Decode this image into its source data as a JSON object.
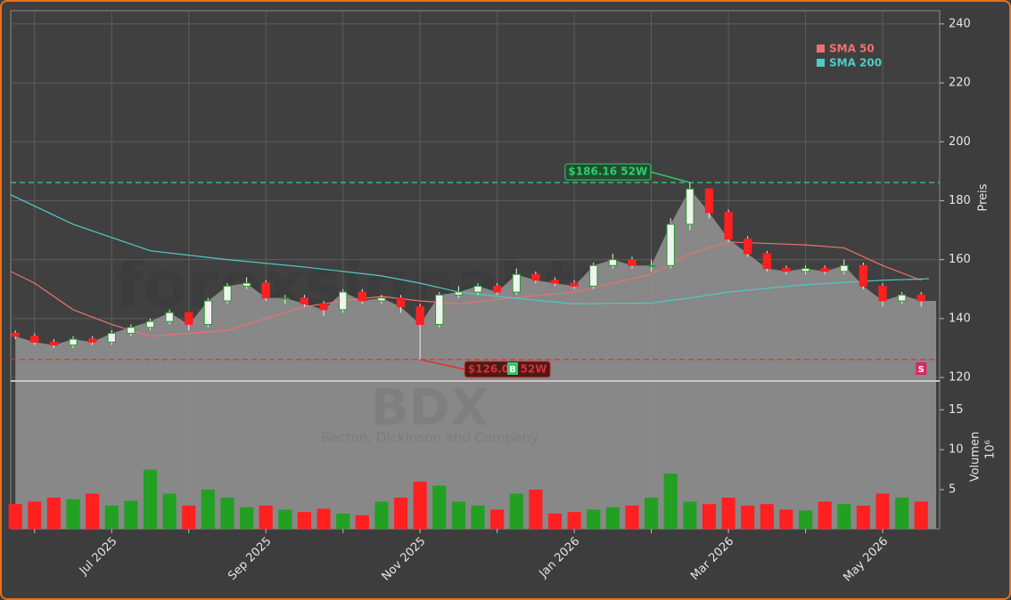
{
  "chart_data": {
    "type": "candlestick",
    "watermark": "forexsignal.trade",
    "symbol": "BDX",
    "company": "Becton, Dickinson and Company",
    "y_label": "Preis",
    "volume_label": "Volumen",
    "volume_unit": "10⁶",
    "grid": true,
    "legend": "upper right",
    "up_color": "#22a022",
    "down_color": "#ff2020",
    "area_color": "#8e8e8e",
    "xlim": [
      5.69,
      17.74
    ],
    "xticks": [
      {
        "value": 6,
        "label": null
      },
      {
        "value": 7,
        "label": "Jul 2025"
      },
      {
        "value": 8,
        "label": null
      },
      {
        "value": 9,
        "label": "Sep 2025"
      },
      {
        "value": 10,
        "label": null
      },
      {
        "value": 11,
        "label": "Nov 2025"
      },
      {
        "value": 12,
        "label": null
      },
      {
        "value": 13,
        "label": "Jan 2026"
      },
      {
        "value": 14,
        "label": null
      },
      {
        "value": 15,
        "label": "Mar 2026"
      },
      {
        "value": 16,
        "label": null
      },
      {
        "value": 17,
        "label": "May 2026"
      }
    ],
    "ylim": [
      118.8,
      244.5
    ],
    "yticks": [
      120,
      140,
      160,
      180,
      200,
      220,
      240
    ],
    "y2lim": [
      0.1,
      18.6
    ],
    "y2ticks": [
      5,
      10,
      15
    ],
    "x": [
      5.75,
      6.0,
      6.25,
      6.5,
      6.75,
      7.0,
      7.25,
      7.5,
      7.75,
      8.0,
      8.25,
      8.5,
      8.75,
      9.0,
      9.25,
      9.5,
      9.75,
      10.0,
      10.25,
      10.5,
      10.75,
      11.0,
      11.25,
      11.5,
      11.75,
      12.0,
      12.25,
      12.5,
      12.75,
      13.0,
      13.25,
      13.5,
      13.75,
      14.0,
      14.25,
      14.5,
      14.75,
      15.0,
      15.25,
      15.5,
      15.75,
      16.0,
      16.25,
      16.5,
      16.75,
      17.0,
      17.25,
      17.5
    ],
    "open": [
      135,
      134,
      132,
      131,
      133,
      132,
      135,
      137,
      139,
      142,
      138,
      146,
      151,
      152,
      147,
      147,
      145,
      143,
      149,
      146,
      147,
      144,
      138,
      148,
      149,
      151,
      149,
      155,
      153,
      152,
      151,
      158,
      160,
      158,
      158,
      172,
      184,
      176,
      167,
      162,
      157,
      156,
      157,
      156,
      158,
      151,
      146,
      148
    ],
    "high": [
      136,
      135,
      133,
      134,
      134,
      136,
      138,
      140,
      143,
      142,
      147,
      152,
      154,
      153,
      148,
      148,
      146,
      150,
      150,
      148,
      148,
      145,
      149,
      151,
      152,
      152,
      157,
      156,
      154,
      153,
      159,
      162,
      161,
      160,
      174,
      186.16,
      184,
      177,
      168,
      163,
      158,
      158,
      158,
      160,
      159,
      152,
      149,
      149
    ],
    "low": [
      133,
      131,
      130,
      130,
      131,
      131,
      134,
      136,
      138,
      136,
      137,
      145,
      150,
      146,
      145,
      144,
      141,
      142,
      145,
      145,
      142,
      126.09,
      137,
      147,
      148,
      148,
      148,
      152,
      151,
      150,
      150,
      157,
      157,
      156,
      157,
      170,
      174,
      166,
      161,
      156,
      155,
      155,
      155,
      155,
      150,
      144,
      145,
      144
    ],
    "close": [
      134,
      132,
      131,
      133,
      132,
      135,
      137,
      139,
      142,
      138,
      146,
      151,
      152,
      147,
      147,
      145,
      143,
      149,
      146,
      147,
      144,
      138,
      148,
      149,
      151,
      149,
      155,
      153,
      152,
      151,
      158,
      160,
      158,
      158,
      172,
      184,
      176,
      167,
      162,
      157,
      156,
      157,
      156,
      158,
      151,
      146,
      148,
      146
    ],
    "volume": [
      3.2,
      3.5,
      4.0,
      3.8,
      4.5,
      3.0,
      3.6,
      7.5,
      4.5,
      3.0,
      5.0,
      4.0,
      2.8,
      3.0,
      2.5,
      2.2,
      2.6,
      2.0,
      1.8,
      3.5,
      4.0,
      6.0,
      5.5,
      3.5,
      3.0,
      2.5,
      4.5,
      5.0,
      2.0,
      2.2,
      2.5,
      2.8,
      3.0,
      4.0,
      7.0,
      3.5,
      3.2,
      4.0,
      3.0,
      3.2,
      2.5,
      2.4,
      3.5,
      3.2,
      3.0,
      4.5,
      4.0,
      3.5
    ],
    "series": [
      {
        "name": "SMA 50",
        "color": "#f07070",
        "x": [
          5.69,
          6.0,
          6.5,
          7.0,
          7.5,
          8.0,
          8.5,
          9.0,
          9.5,
          10.0,
          10.5,
          11.0,
          11.5,
          12.0,
          13.0,
          14.0,
          14.5,
          15.0,
          15.5,
          16.0,
          16.5,
          17.0,
          17.5
        ],
        "values": [
          156,
          152,
          143,
          138,
          134,
          135,
          136,
          140,
          144,
          146,
          147.5,
          146,
          145,
          146.5,
          149,
          155,
          162,
          166,
          165.5,
          165,
          164,
          158,
          153
        ]
      },
      {
        "name": "SMA 200",
        "color": "#4ecdc4",
        "x": [
          5.69,
          6.5,
          7.5,
          8.5,
          9.5,
          10.5,
          11.0,
          11.5,
          12.2,
          13.0,
          14.0,
          14.5,
          15.0,
          16.0,
          17.0,
          17.6
        ],
        "values": [
          182,
          172,
          163,
          160,
          157.5,
          154.5,
          152,
          149,
          147,
          145,
          145.3,
          147,
          149,
          151.5,
          153,
          153.5
        ]
      }
    ],
    "annotations": [
      {
        "text": "$186.16 52W",
        "value": 186.16,
        "color": "#2ecc71"
      },
      {
        "text": "$126.09 52W",
        "value": 126.09,
        "color": "#e03030"
      }
    ],
    "signals": [
      {
        "label": "B",
        "x": 12.2,
        "color": "#2ecc71"
      },
      {
        "label": "S",
        "x": 17.5,
        "color": "#e0245e"
      }
    ]
  }
}
